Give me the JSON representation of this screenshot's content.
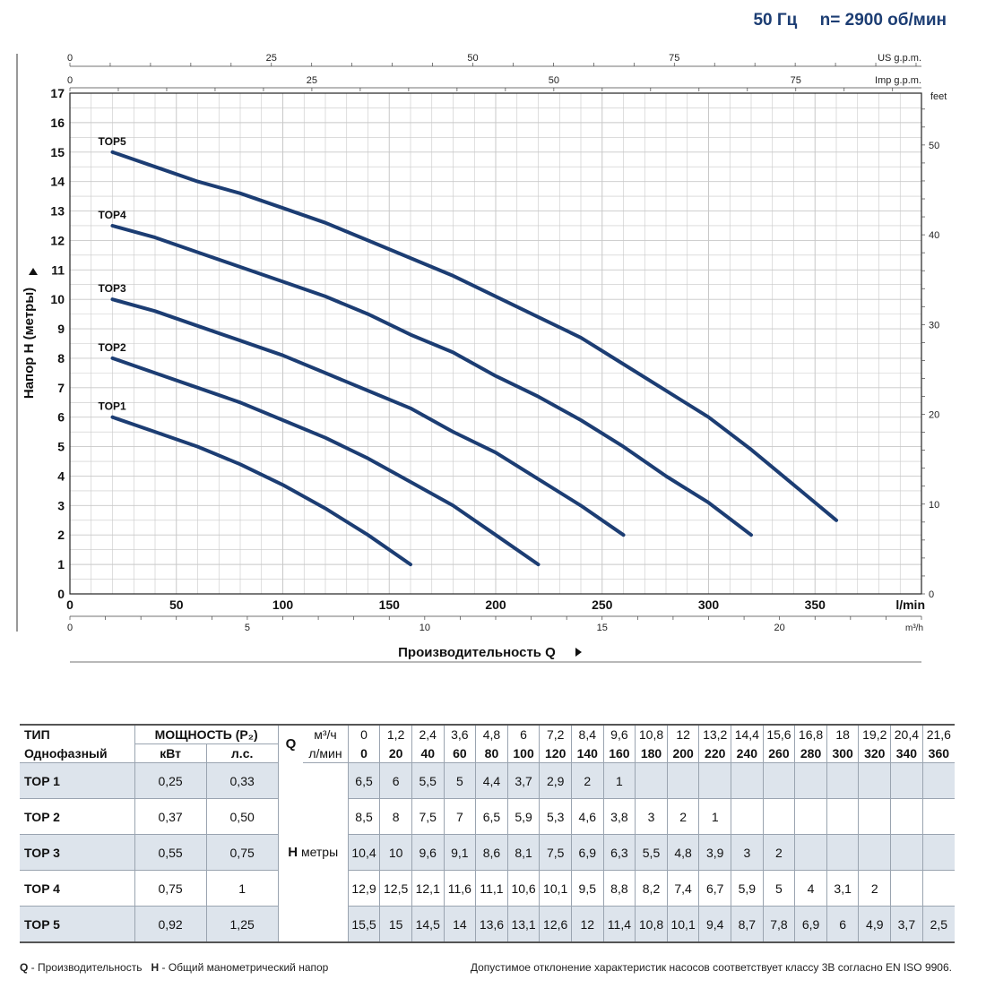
{
  "header": {
    "freq": "50 Гц",
    "speed": "n= 2900 об/мин"
  },
  "chart_data": {
    "type": "line",
    "xlabel": "Производительность Q",
    "ylabel": "Напор H (метры)",
    "x_unit": "l/min",
    "x_unit_m3h": "m³/h",
    "y_unit_feet": "feet",
    "us_gpm_label": "US g.p.m.",
    "imp_gpm_label": "Imp g.p.m.",
    "xlim": [
      0,
      400
    ],
    "ylim": [
      0,
      17
    ],
    "x_ticks": [
      0,
      50,
      100,
      150,
      200,
      250,
      300,
      350
    ],
    "y_ticks": [
      0,
      1,
      2,
      3,
      4,
      5,
      6,
      7,
      8,
      9,
      10,
      11,
      12,
      13,
      14,
      15,
      16,
      17
    ],
    "m3h_ticks": [
      0,
      5,
      10,
      15,
      20
    ],
    "feet_ticks": [
      0,
      10,
      20,
      30,
      40,
      50
    ],
    "us_gpm_ticks": [
      0,
      25,
      50,
      75
    ],
    "imp_gpm_ticks": [
      0,
      25,
      50,
      75
    ],
    "series": [
      {
        "name": "TOP1",
        "x": [
          20,
          40,
          60,
          80,
          100,
          120,
          140,
          160
        ],
        "values": [
          6,
          5.5,
          5,
          4.4,
          3.7,
          2.9,
          2,
          1
        ]
      },
      {
        "name": "TOP2",
        "x": [
          20,
          40,
          60,
          80,
          100,
          120,
          140,
          160,
          180,
          200,
          220
        ],
        "values": [
          8,
          7.5,
          7,
          6.5,
          5.9,
          5.3,
          4.6,
          3.8,
          3,
          2,
          1
        ]
      },
      {
        "name": "TOP3",
        "x": [
          20,
          40,
          60,
          80,
          100,
          120,
          140,
          160,
          180,
          200,
          220,
          240,
          260
        ],
        "values": [
          10,
          9.6,
          9.1,
          8.6,
          8.1,
          7.5,
          6.9,
          6.3,
          5.5,
          4.8,
          3.9,
          3,
          2
        ]
      },
      {
        "name": "TOP4",
        "x": [
          20,
          40,
          60,
          80,
          100,
          120,
          140,
          160,
          180,
          200,
          220,
          240,
          260,
          280,
          300,
          320
        ],
        "values": [
          12.5,
          12.1,
          11.6,
          11.1,
          10.6,
          10.1,
          9.5,
          8.8,
          8.2,
          7.4,
          6.7,
          5.9,
          5,
          4,
          3.1,
          2
        ]
      },
      {
        "name": "TOP5",
        "x": [
          20,
          40,
          60,
          80,
          100,
          120,
          140,
          160,
          180,
          200,
          220,
          240,
          260,
          280,
          300,
          320,
          340,
          360
        ],
        "values": [
          15,
          14.5,
          14,
          13.6,
          13.1,
          12.6,
          12,
          11.4,
          10.8,
          10.1,
          9.4,
          8.7,
          7.8,
          6.9,
          6,
          4.9,
          3.7,
          2.5
        ]
      }
    ]
  },
  "table": {
    "col_type": "ТИП",
    "col_type_sub": "Однофазный",
    "col_power": "МОЩНОСТЬ (P₂)",
    "col_kw": "кВт",
    "col_hp": "л.с.",
    "q_label": "Q",
    "q_unit_m3h": "м³/ч",
    "q_unit_lmin": "л/мин",
    "h_label": "H",
    "h_unit": "метры",
    "q_m3h": [
      "0",
      "1,2",
      "2,4",
      "3,6",
      "4,8",
      "6",
      "7,2",
      "8,4",
      "9,6",
      "10,8",
      "12",
      "13,2",
      "14,4",
      "15,6",
      "16,8",
      "18",
      "19,2",
      "20,4",
      "21,6"
    ],
    "q_lmin": [
      "0",
      "20",
      "40",
      "60",
      "80",
      "100",
      "120",
      "140",
      "160",
      "180",
      "200",
      "220",
      "240",
      "260",
      "280",
      "300",
      "320",
      "340",
      "360"
    ],
    "rows": [
      {
        "name": "TOP 1",
        "kw": "0,25",
        "hp": "0,33",
        "h": [
          "6,5",
          "6",
          "5,5",
          "5",
          "4,4",
          "3,7",
          "2,9",
          "2",
          "1",
          "",
          "",
          "",
          "",
          "",
          "",
          "",
          "",
          "",
          ""
        ]
      },
      {
        "name": "TOP 2",
        "kw": "0,37",
        "hp": "0,50",
        "h": [
          "8,5",
          "8",
          "7,5",
          "7",
          "6,5",
          "5,9",
          "5,3",
          "4,6",
          "3,8",
          "3",
          "2",
          "1",
          "",
          "",
          "",
          "",
          "",
          "",
          ""
        ]
      },
      {
        "name": "TOP 3",
        "kw": "0,55",
        "hp": "0,75",
        "h": [
          "10,4",
          "10",
          "9,6",
          "9,1",
          "8,6",
          "8,1",
          "7,5",
          "6,9",
          "6,3",
          "5,5",
          "4,8",
          "3,9",
          "3",
          "2",
          "",
          "",
          "",
          "",
          ""
        ]
      },
      {
        "name": "TOP 4",
        "kw": "0,75",
        "hp": "1",
        "h": [
          "12,9",
          "12,5",
          "12,1",
          "11,6",
          "11,1",
          "10,6",
          "10,1",
          "9,5",
          "8,8",
          "8,2",
          "7,4",
          "6,7",
          "5,9",
          "5",
          "4",
          "3,1",
          "2",
          "",
          ""
        ]
      },
      {
        "name": "TOP 5",
        "kw": "0,92",
        "hp": "1,25",
        "h": [
          "15,5",
          "15",
          "14,5",
          "14",
          "13,6",
          "13,1",
          "12,6",
          "12",
          "11,4",
          "10,8",
          "10,1",
          "9,4",
          "8,7",
          "7,8",
          "6,9",
          "6",
          "4,9",
          "3,7",
          "2,5"
        ]
      }
    ]
  },
  "footer": {
    "q_key": "Q",
    "q_desc": " - Производительность",
    "h_key": "H",
    "h_desc": " - Общий манометрический напор",
    "note": "Допустимое отклонение характеристик насосов соответствует классу 3B согласно EN ISO 9906."
  },
  "colors": {
    "curve": "#1c3d73",
    "header": "#1c3d73",
    "shade": "#dde4ec"
  }
}
